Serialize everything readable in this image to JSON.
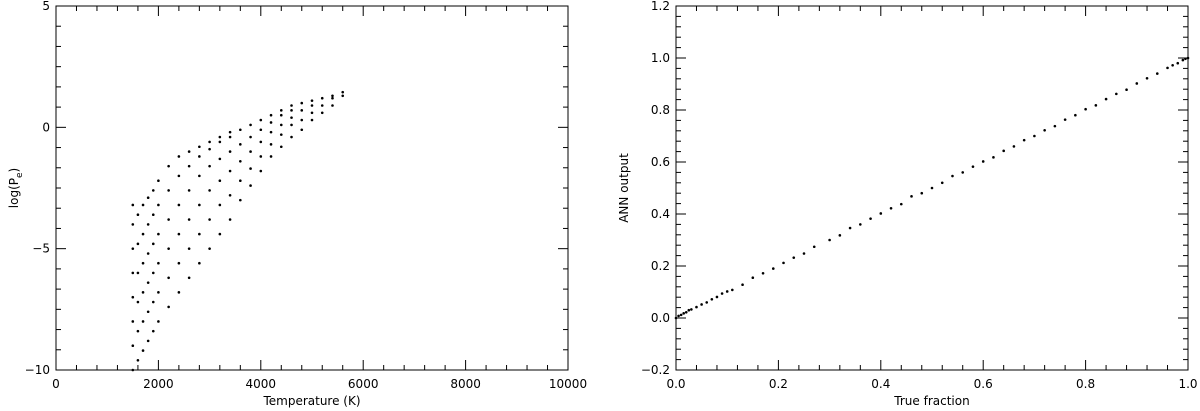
{
  "chart_data": [
    {
      "type": "scatter",
      "xlabel": "Temperature (K)",
      "ylabel": "log(P",
      "ylabel_subscript": "e",
      "ylabel_suffix": ")",
      "xlim": [
        0,
        10000
      ],
      "ylim": [
        -10,
        5
      ],
      "xticks": [
        0,
        2000,
        4000,
        6000,
        8000,
        10000
      ],
      "yticks": [
        -10,
        -5,
        0,
        5
      ],
      "tick_labels_x": [
        "0",
        "2000",
        "4000",
        "6000",
        "8000",
        "10000"
      ],
      "tick_labels_y": [
        "−10",
        "−5",
        "0",
        "5"
      ],
      "grid": false,
      "marker_color": "#000000",
      "points": [
        [
          1500,
          -10.0
        ],
        [
          1500,
          -9.0
        ],
        [
          1500,
          -8.0
        ],
        [
          1500,
          -7.0
        ],
        [
          1500,
          -6.0
        ],
        [
          1500,
          -5.0
        ],
        [
          1500,
          -4.0
        ],
        [
          1500,
          -3.2
        ],
        [
          1600,
          -9.6
        ],
        [
          1600,
          -8.4
        ],
        [
          1600,
          -7.2
        ],
        [
          1600,
          -6.0
        ],
        [
          1600,
          -4.8
        ],
        [
          1600,
          -3.6
        ],
        [
          1700,
          -9.2
        ],
        [
          1700,
          -8.0
        ],
        [
          1700,
          -6.8
        ],
        [
          1700,
          -5.6
        ],
        [
          1700,
          -4.4
        ],
        [
          1700,
          -3.2
        ],
        [
          1800,
          -8.8
        ],
        [
          1800,
          -7.6
        ],
        [
          1800,
          -6.4
        ],
        [
          1800,
          -5.2
        ],
        [
          1800,
          -4.0
        ],
        [
          1800,
          -2.9
        ],
        [
          1900,
          -8.4
        ],
        [
          1900,
          -7.2
        ],
        [
          1900,
          -6.0
        ],
        [
          1900,
          -4.8
        ],
        [
          1900,
          -3.6
        ],
        [
          1900,
          -2.6
        ],
        [
          2000,
          -8.0
        ],
        [
          2000,
          -6.8
        ],
        [
          2000,
          -5.6
        ],
        [
          2000,
          -4.4
        ],
        [
          2000,
          -3.2
        ],
        [
          2000,
          -2.2
        ],
        [
          2200,
          -7.4
        ],
        [
          2200,
          -6.2
        ],
        [
          2200,
          -5.0
        ],
        [
          2200,
          -3.8
        ],
        [
          2200,
          -2.6
        ],
        [
          2200,
          -1.6
        ],
        [
          2400,
          -6.8
        ],
        [
          2400,
          -5.6
        ],
        [
          2400,
          -4.4
        ],
        [
          2400,
          -3.2
        ],
        [
          2400,
          -2.0
        ],
        [
          2400,
          -1.2
        ],
        [
          2600,
          -6.2
        ],
        [
          2600,
          -5.0
        ],
        [
          2600,
          -3.8
        ],
        [
          2600,
          -2.6
        ],
        [
          2600,
          -1.6
        ],
        [
          2600,
          -1.0
        ],
        [
          2800,
          -5.6
        ],
        [
          2800,
          -4.4
        ],
        [
          2800,
          -3.2
        ],
        [
          2800,
          -2.0
        ],
        [
          2800,
          -1.2
        ],
        [
          2800,
          -0.8
        ],
        [
          3000,
          -5.0
        ],
        [
          3000,
          -3.8
        ],
        [
          3000,
          -2.6
        ],
        [
          3000,
          -1.6
        ],
        [
          3000,
          -0.9
        ],
        [
          3000,
          -0.6
        ],
        [
          3200,
          -4.4
        ],
        [
          3200,
          -3.2
        ],
        [
          3200,
          -2.2
        ],
        [
          3200,
          -1.3
        ],
        [
          3200,
          -0.6
        ],
        [
          3200,
          -0.4
        ],
        [
          3400,
          -3.8
        ],
        [
          3400,
          -2.8
        ],
        [
          3400,
          -1.8
        ],
        [
          3400,
          -1.0
        ],
        [
          3400,
          -0.4
        ],
        [
          3400,
          -0.2
        ],
        [
          3600,
          -3.0
        ],
        [
          3600,
          -2.2
        ],
        [
          3600,
          -1.4
        ],
        [
          3600,
          -0.7
        ],
        [
          3600,
          -0.1
        ],
        [
          3800,
          -2.4
        ],
        [
          3800,
          -1.7
        ],
        [
          3800,
          -1.0
        ],
        [
          3800,
          -0.4
        ],
        [
          3800,
          0.1
        ],
        [
          4000,
          -1.8
        ],
        [
          4000,
          -1.2
        ],
        [
          4000,
          -0.6
        ],
        [
          4000,
          -0.1
        ],
        [
          4000,
          0.3
        ],
        [
          4200,
          -1.2
        ],
        [
          4200,
          -0.7
        ],
        [
          4200,
          -0.2
        ],
        [
          4200,
          0.2
        ],
        [
          4200,
          0.5
        ],
        [
          4400,
          -0.8
        ],
        [
          4400,
          -0.3
        ],
        [
          4400,
          0.1
        ],
        [
          4400,
          0.5
        ],
        [
          4400,
          0.7
        ],
        [
          4600,
          -0.4
        ],
        [
          4600,
          0.1
        ],
        [
          4600,
          0.4
        ],
        [
          4600,
          0.7
        ],
        [
          4600,
          0.9
        ],
        [
          4800,
          -0.1
        ],
        [
          4800,
          0.3
        ],
        [
          4800,
          0.7
        ],
        [
          4800,
          1.0
        ],
        [
          5000,
          0.3
        ],
        [
          5000,
          0.6
        ],
        [
          5000,
          0.9
        ],
        [
          5000,
          1.1
        ],
        [
          5200,
          0.6
        ],
        [
          5200,
          0.9
        ],
        [
          5200,
          1.2
        ],
        [
          5400,
          0.9
        ],
        [
          5400,
          1.2
        ],
        [
          5400,
          1.3
        ],
        [
          5600,
          1.3
        ],
        [
          5600,
          1.45
        ]
      ]
    },
    {
      "type": "scatter",
      "xlabel": "True fraction",
      "ylabel": "ANN output",
      "xlim": [
        0.0,
        1.0
      ],
      "ylim": [
        -0.2,
        1.2
      ],
      "xticks": [
        0.0,
        0.2,
        0.4,
        0.6,
        0.8,
        1.0
      ],
      "yticks": [
        -0.2,
        0.0,
        0.2,
        0.4,
        0.6,
        0.8,
        1.0,
        1.2
      ],
      "tick_labels_x": [
        "0.0",
        "0.2",
        "0.4",
        "0.6",
        "0.8",
        "1.0"
      ],
      "tick_labels_y": [
        "−0.2",
        "0.0",
        "0.2",
        "0.4",
        "0.6",
        "0.8",
        "1.0",
        "1.2"
      ],
      "grid": false,
      "marker_color": "#000000",
      "points": [
        [
          0.0,
          0.0
        ],
        [
          0.005,
          0.008
        ],
        [
          0.01,
          0.012
        ],
        [
          0.015,
          0.018
        ],
        [
          0.02,
          0.022
        ],
        [
          0.025,
          0.03
        ],
        [
          0.03,
          0.033
        ],
        [
          0.04,
          0.042
        ],
        [
          0.05,
          0.052
        ],
        [
          0.06,
          0.06
        ],
        [
          0.07,
          0.072
        ],
        [
          0.08,
          0.081
        ],
        [
          0.09,
          0.094
        ],
        [
          0.1,
          0.102
        ],
        [
          0.11,
          0.108
        ],
        [
          0.13,
          0.128
        ],
        [
          0.15,
          0.155
        ],
        [
          0.17,
          0.172
        ],
        [
          0.19,
          0.19
        ],
        [
          0.21,
          0.212
        ],
        [
          0.23,
          0.232
        ],
        [
          0.25,
          0.248
        ],
        [
          0.27,
          0.274
        ],
        [
          0.3,
          0.3
        ],
        [
          0.32,
          0.318
        ],
        [
          0.34,
          0.346
        ],
        [
          0.36,
          0.36
        ],
        [
          0.38,
          0.382
        ],
        [
          0.4,
          0.402
        ],
        [
          0.42,
          0.422
        ],
        [
          0.44,
          0.438
        ],
        [
          0.46,
          0.468
        ],
        [
          0.48,
          0.48
        ],
        [
          0.5,
          0.5
        ],
        [
          0.52,
          0.52
        ],
        [
          0.54,
          0.546
        ],
        [
          0.56,
          0.56
        ],
        [
          0.58,
          0.582
        ],
        [
          0.6,
          0.602
        ],
        [
          0.62,
          0.618
        ],
        [
          0.64,
          0.643
        ],
        [
          0.66,
          0.66
        ],
        [
          0.68,
          0.684
        ],
        [
          0.7,
          0.7
        ],
        [
          0.72,
          0.722
        ],
        [
          0.74,
          0.738
        ],
        [
          0.76,
          0.763
        ],
        [
          0.78,
          0.78
        ],
        [
          0.8,
          0.803
        ],
        [
          0.82,
          0.818
        ],
        [
          0.84,
          0.842
        ],
        [
          0.86,
          0.862
        ],
        [
          0.88,
          0.878
        ],
        [
          0.9,
          0.902
        ],
        [
          0.92,
          0.922
        ],
        [
          0.94,
          0.94
        ],
        [
          0.96,
          0.962
        ],
        [
          0.97,
          0.972
        ],
        [
          0.98,
          0.98
        ],
        [
          0.99,
          0.992
        ],
        [
          0.995,
          0.997
        ],
        [
          1.0,
          1.0
        ]
      ]
    }
  ]
}
